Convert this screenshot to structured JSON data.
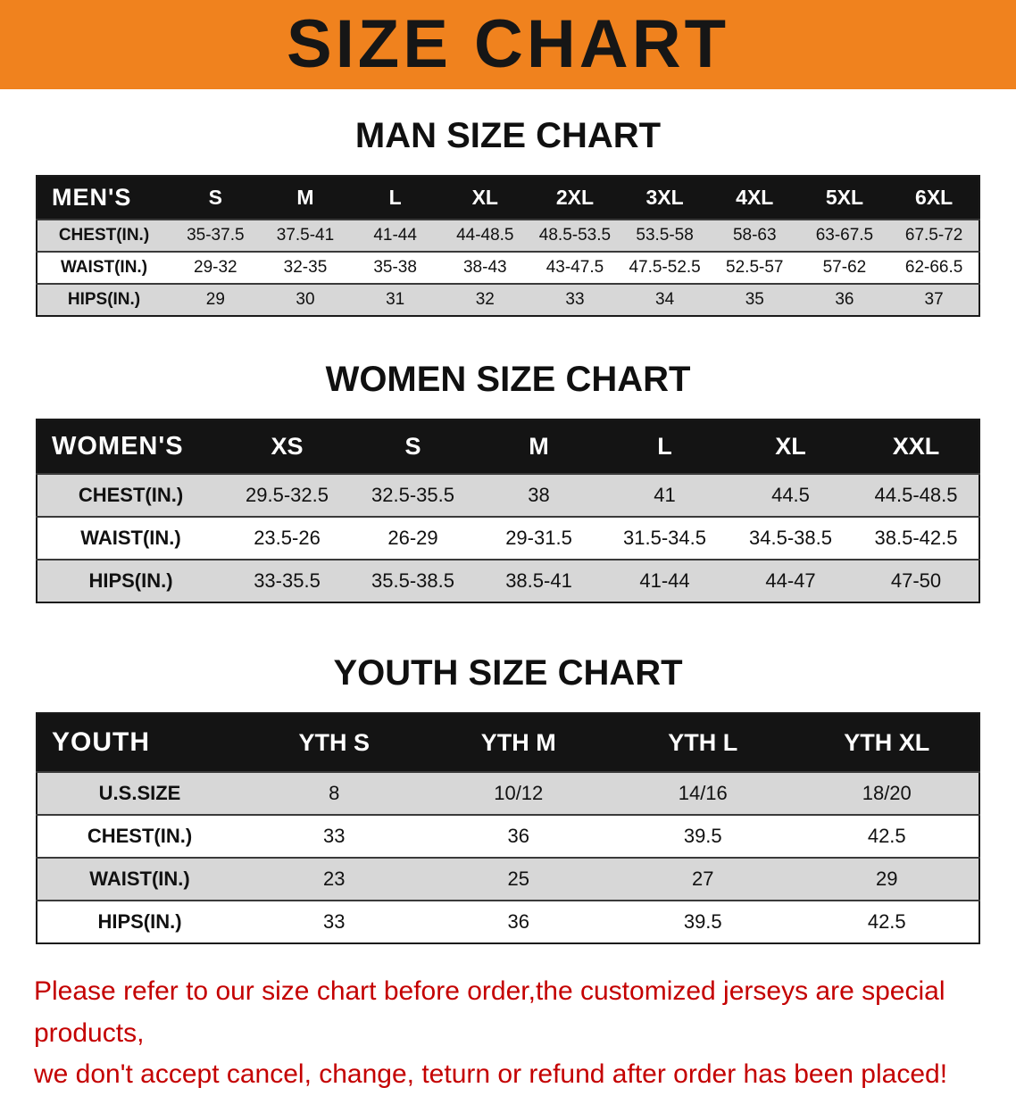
{
  "banner": {
    "title": "SIZE CHART",
    "bg_color": "#F0821E"
  },
  "sections": [
    {
      "heading": "MAN SIZE CHART",
      "table": {
        "header_label": "MEN'S",
        "columns": [
          "S",
          "M",
          "L",
          "XL",
          "2XL",
          "3XL",
          "4XL",
          "5XL",
          "6XL"
        ],
        "rows": [
          {
            "label": "CHEST(IN.)",
            "values": [
              "35-37.5",
              "37.5-41",
              "41-44",
              "44-48.5",
              "48.5-53.5",
              "53.5-58",
              "58-63",
              "63-67.5",
              "67.5-72"
            ]
          },
          {
            "label": "WAIST(IN.)",
            "values": [
              "29-32",
              "32-35",
              "35-38",
              "38-43",
              "43-47.5",
              "47.5-52.5",
              "52.5-57",
              "57-62",
              "62-66.5"
            ]
          },
          {
            "label": "HIPS(IN.)",
            "values": [
              "29",
              "30",
              "31",
              "32",
              "33",
              "34",
              "35",
              "36",
              "37"
            ]
          }
        ]
      }
    },
    {
      "heading": "WOMEN SIZE CHART",
      "table": {
        "header_label": "WOMEN'S",
        "columns": [
          "XS",
          "S",
          "M",
          "L",
          "XL",
          "XXL"
        ],
        "rows": [
          {
            "label": "CHEST(IN.)",
            "values": [
              "29.5-32.5",
              "32.5-35.5",
              "38",
              "41",
              "44.5",
              "44.5-48.5"
            ]
          },
          {
            "label": "WAIST(IN.)",
            "values": [
              "23.5-26",
              "26-29",
              "29-31.5",
              "31.5-34.5",
              "34.5-38.5",
              "38.5-42.5"
            ]
          },
          {
            "label": "HIPS(IN.)",
            "values": [
              "33-35.5",
              "35.5-38.5",
              "38.5-41",
              "41-44",
              "44-47",
              "47-50"
            ]
          }
        ]
      }
    },
    {
      "heading": "YOUTH SIZE CHART",
      "table": {
        "header_label": "YOUTH",
        "columns": [
          "YTH S",
          "YTH M",
          "YTH L",
          "YTH XL"
        ],
        "rows": [
          {
            "label": "U.S.SIZE",
            "values": [
              "8",
              "10/12",
              "14/16",
              "18/20"
            ]
          },
          {
            "label": "CHEST(IN.)",
            "values": [
              "33",
              "36",
              "39.5",
              "42.5"
            ]
          },
          {
            "label": "WAIST(IN.)",
            "values": [
              "23",
              "25",
              "27",
              "29"
            ]
          },
          {
            "label": "HIPS(IN.)",
            "values": [
              "33",
              "36",
              "39.5",
              "42.5"
            ]
          }
        ]
      }
    }
  ],
  "disclaimer": {
    "line1": "Please refer to our size chart before order,the customized jerseys are special products,",
    "line2": "we don't accept cancel, change, teturn or refund after order has been placed!",
    "color": "#C40000"
  }
}
